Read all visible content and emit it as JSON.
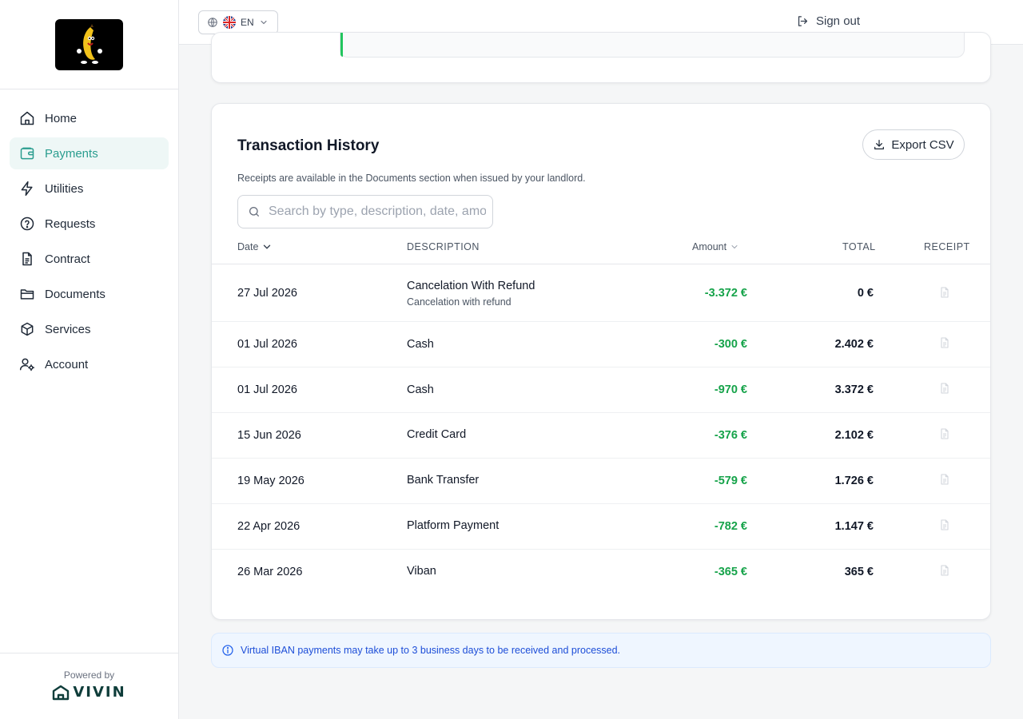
{
  "sidebar": {
    "items": [
      {
        "label": "Home",
        "icon": "home-icon"
      },
      {
        "label": "Payments",
        "icon": "wallet-icon",
        "active": true
      },
      {
        "label": "Utilities",
        "icon": "lightning-icon"
      },
      {
        "label": "Requests",
        "icon": "help-circle-icon"
      },
      {
        "label": "Contract",
        "icon": "file-text-icon"
      },
      {
        "label": "Documents",
        "icon": "folder-icon"
      },
      {
        "label": "Services",
        "icon": "box-icon"
      },
      {
        "label": "Account",
        "icon": "user-cog-icon"
      }
    ],
    "powered_by": "Powered by",
    "brand": "VIVIN"
  },
  "topbar": {
    "language": "EN",
    "sign_out": "Sign out"
  },
  "progress": {
    "value_percent": 0
  },
  "transactions": {
    "title": "Transaction History",
    "export_label": "Export CSV",
    "note": "Receipts are available in the Documents section when issued by your landlord.",
    "search_placeholder": "Search by type, description, date, amount...",
    "columns": {
      "date": "Date",
      "description": "DESCRIPTION",
      "amount": "Amount",
      "total": "TOTAL",
      "receipt": "RECEIPT"
    },
    "rows": [
      {
        "date": "27 Jul 2026",
        "description": "Cancelation With Refund",
        "sub": "Cancelation with refund",
        "amount": "-3.372 €",
        "total": "0 €"
      },
      {
        "date": "01 Jul 2026",
        "description": "Cash",
        "sub": "",
        "amount": "-300 €",
        "total": "2.402 €"
      },
      {
        "date": "01 Jul 2026",
        "description": "Cash",
        "sub": "",
        "amount": "-970 €",
        "total": "3.372 €"
      },
      {
        "date": "15 Jun 2026",
        "description": "Credit Card",
        "sub": "",
        "amount": "-376 €",
        "total": "2.102 €"
      },
      {
        "date": "19 May 2026",
        "description": "Bank Transfer",
        "sub": "",
        "amount": "-579 €",
        "total": "1.726 €"
      },
      {
        "date": "22 Apr 2026",
        "description": "Platform Payment",
        "sub": "",
        "amount": "-782 €",
        "total": "1.147 €"
      },
      {
        "date": "26 Mar 2026",
        "description": "Viban",
        "sub": "",
        "amount": "-365 €",
        "total": "365 €"
      }
    ]
  },
  "info_banner": "Virtual IBAN payments may take up to 3 business days to be received and processed.",
  "colors": {
    "accent": "#2a9d8f",
    "positive_amount": "#16a34a",
    "info_text": "#1d4ed8"
  }
}
